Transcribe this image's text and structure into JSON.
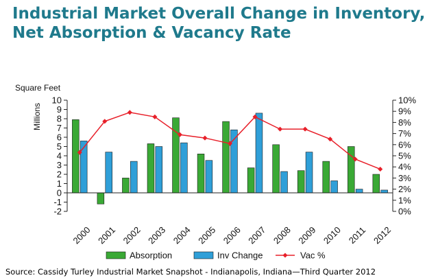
{
  "title": "Industrial Market Overall Change in Inventory, Net Absorption & Vacancy Rate",
  "source": "Source: Cassidy Turley Industrial Market Snapshot - Indianapolis, Indiana—Third Quarter 2012",
  "chart_data": {
    "type": "bar",
    "yunit_label": "Square Feet",
    "ylabel": "Millions",
    "categories": [
      "2000",
      "2001",
      "2002",
      "2003",
      "2004",
      "2005",
      "2006",
      "2007",
      "2008",
      "2009",
      "2010",
      "2011",
      "2012"
    ],
    "ylim": [
      -2,
      10
    ],
    "y2lim": [
      0,
      10
    ],
    "yticks": [
      "-2",
      "-1",
      "0",
      "1",
      "2",
      "3",
      "4",
      "5",
      "6",
      "7",
      "8",
      "9",
      "10"
    ],
    "y2ticks": [
      "0%",
      "1%",
      "2%",
      "3%",
      "4%",
      "5%",
      "6%",
      "7%",
      "8%",
      "9%",
      "10%"
    ],
    "series": [
      {
        "name": "Absorption",
        "kind": "bar",
        "color": "#3aa935",
        "values": [
          7.9,
          -1.2,
          1.6,
          5.3,
          8.1,
          4.2,
          7.7,
          2.7,
          5.2,
          2.4,
          3.4,
          5.0,
          2.0
        ]
      },
      {
        "name": "Inv Change",
        "kind": "bar",
        "color": "#2f9fd8",
        "values": [
          5.6,
          4.4,
          3.4,
          5.0,
          5.4,
          3.5,
          6.8,
          8.6,
          2.3,
          4.4,
          1.3,
          0.4,
          0.3
        ]
      },
      {
        "name": "Vac %",
        "kind": "line",
        "axis": "right",
        "color": "#e8202a",
        "values": [
          5.3,
          8.1,
          8.9,
          8.5,
          6.9,
          6.6,
          6.1,
          8.5,
          7.4,
          7.4,
          6.5,
          4.7,
          3.8
        ]
      }
    ],
    "legend": "bottom",
    "grid": false
  }
}
